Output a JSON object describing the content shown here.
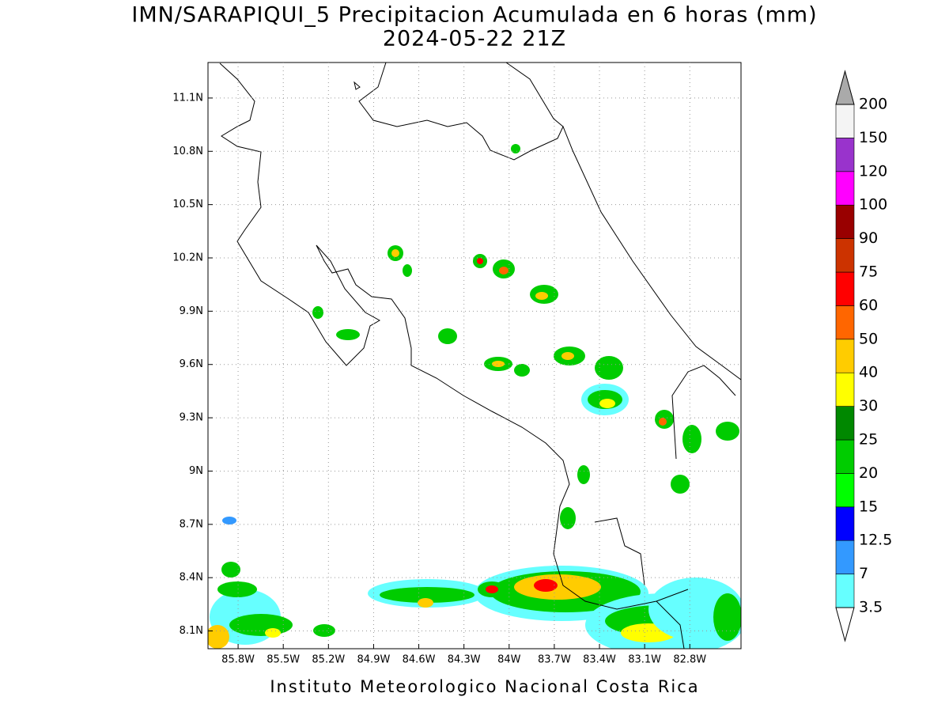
{
  "title": "IMN/SARAPIQUI_5 Precipitacion Acumulada en 6 horas (mm)",
  "subtitle": "2024-05-22 21Z",
  "footer": "Instituto Meteorologico Nacional Costa Rica",
  "map": {
    "xlim": [
      -86.0,
      -82.46
    ],
    "ylim": [
      8.0,
      11.3
    ],
    "grid": true,
    "lon_ticks": [
      {
        "value": -85.8,
        "label": "85.8W"
      },
      {
        "value": -85.5,
        "label": "85.5W"
      },
      {
        "value": -85.2,
        "label": "85.2W"
      },
      {
        "value": -84.9,
        "label": "84.9W"
      },
      {
        "value": -84.6,
        "label": "84.6W"
      },
      {
        "value": -84.3,
        "label": "84.3W"
      },
      {
        "value": -84.0,
        "label": "84W"
      },
      {
        "value": -83.7,
        "label": "83.7W"
      },
      {
        "value": -83.4,
        "label": "83.4W"
      },
      {
        "value": -83.1,
        "label": "83.1W"
      },
      {
        "value": -82.8,
        "label": "82.8W"
      }
    ],
    "lat_ticks": [
      {
        "value": 8.1,
        "label": "8.1N"
      },
      {
        "value": 8.4,
        "label": "8.4N"
      },
      {
        "value": 8.7,
        "label": "8.7N"
      },
      {
        "value": 9.0,
        "label": "9N"
      },
      {
        "value": 9.3,
        "label": "9.3N"
      },
      {
        "value": 9.6,
        "label": "9.6N"
      },
      {
        "value": 9.9,
        "label": "9.9N"
      },
      {
        "value": 10.2,
        "label": "10.2N"
      },
      {
        "value": 10.5,
        "label": "10.5N"
      },
      {
        "value": 10.8,
        "label": "10.8N"
      },
      {
        "value": 11.1,
        "label": "11.1N"
      }
    ]
  },
  "colorbar": {
    "levels": [
      3.5,
      7,
      12.5,
      15,
      20,
      25,
      30,
      40,
      50,
      60,
      75,
      90,
      100,
      120,
      150,
      200
    ],
    "colors": [
      "#66ffff",
      "#3399ff",
      "#0000ff",
      "#00ff00",
      "#00cc00",
      "#008800",
      "#ffff00",
      "#ffcc00",
      "#ff6600",
      "#ff0000",
      "#cc3300",
      "#990000",
      "#ff00ff",
      "#9933cc",
      "#f4f4f4"
    ],
    "under_color": "#ffffff",
    "over_color": "#aaaaaa"
  }
}
